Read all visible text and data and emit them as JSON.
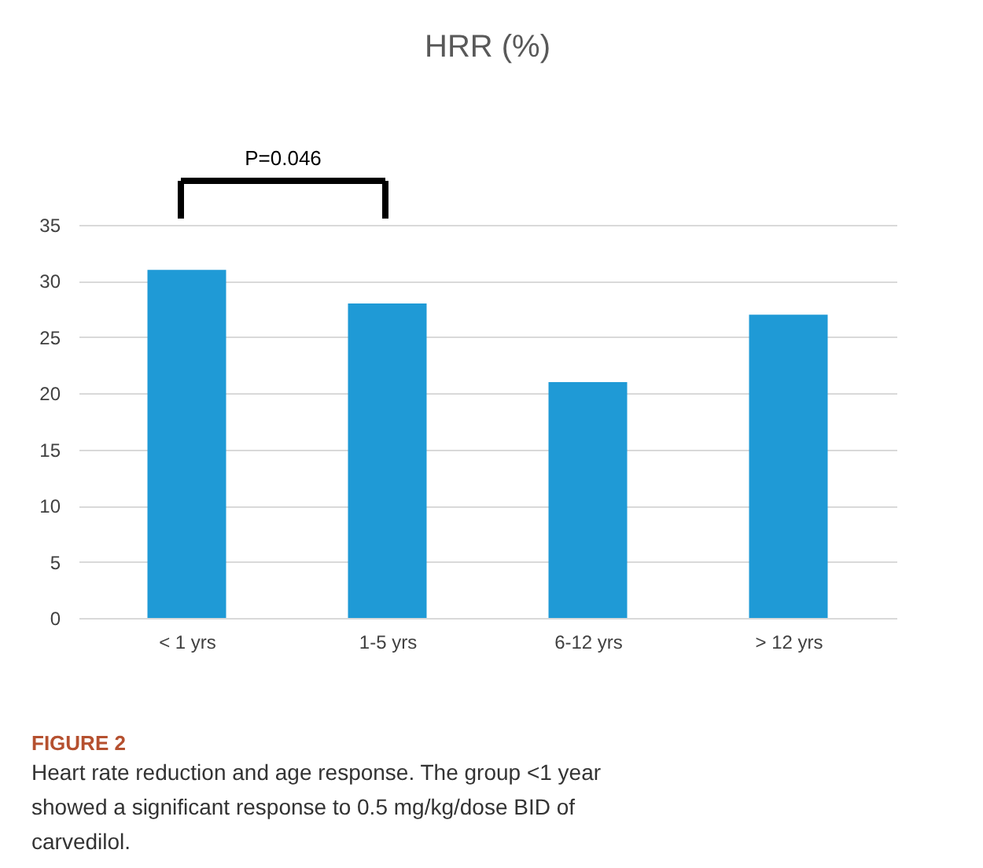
{
  "chart_data": {
    "type": "bar",
    "title": "HRR (%)",
    "categories": [
      "< 1 yrs",
      "1-5 yrs",
      "6-12 yrs",
      "> 12 yrs"
    ],
    "values": [
      31,
      28,
      21,
      27
    ],
    "color": "#1f9ad6",
    "ylim": [
      0,
      35
    ],
    "yticks": [
      0,
      5,
      10,
      15,
      20,
      25,
      30,
      35
    ],
    "grid": "y",
    "annotations": [
      "P=0.046",
      "FIGURE 2",
      "Heart rate reduction and age response. The group <1 year showed a significant response to 0.5 mg/kg/dose BID of carvedilol."
    ]
  }
}
